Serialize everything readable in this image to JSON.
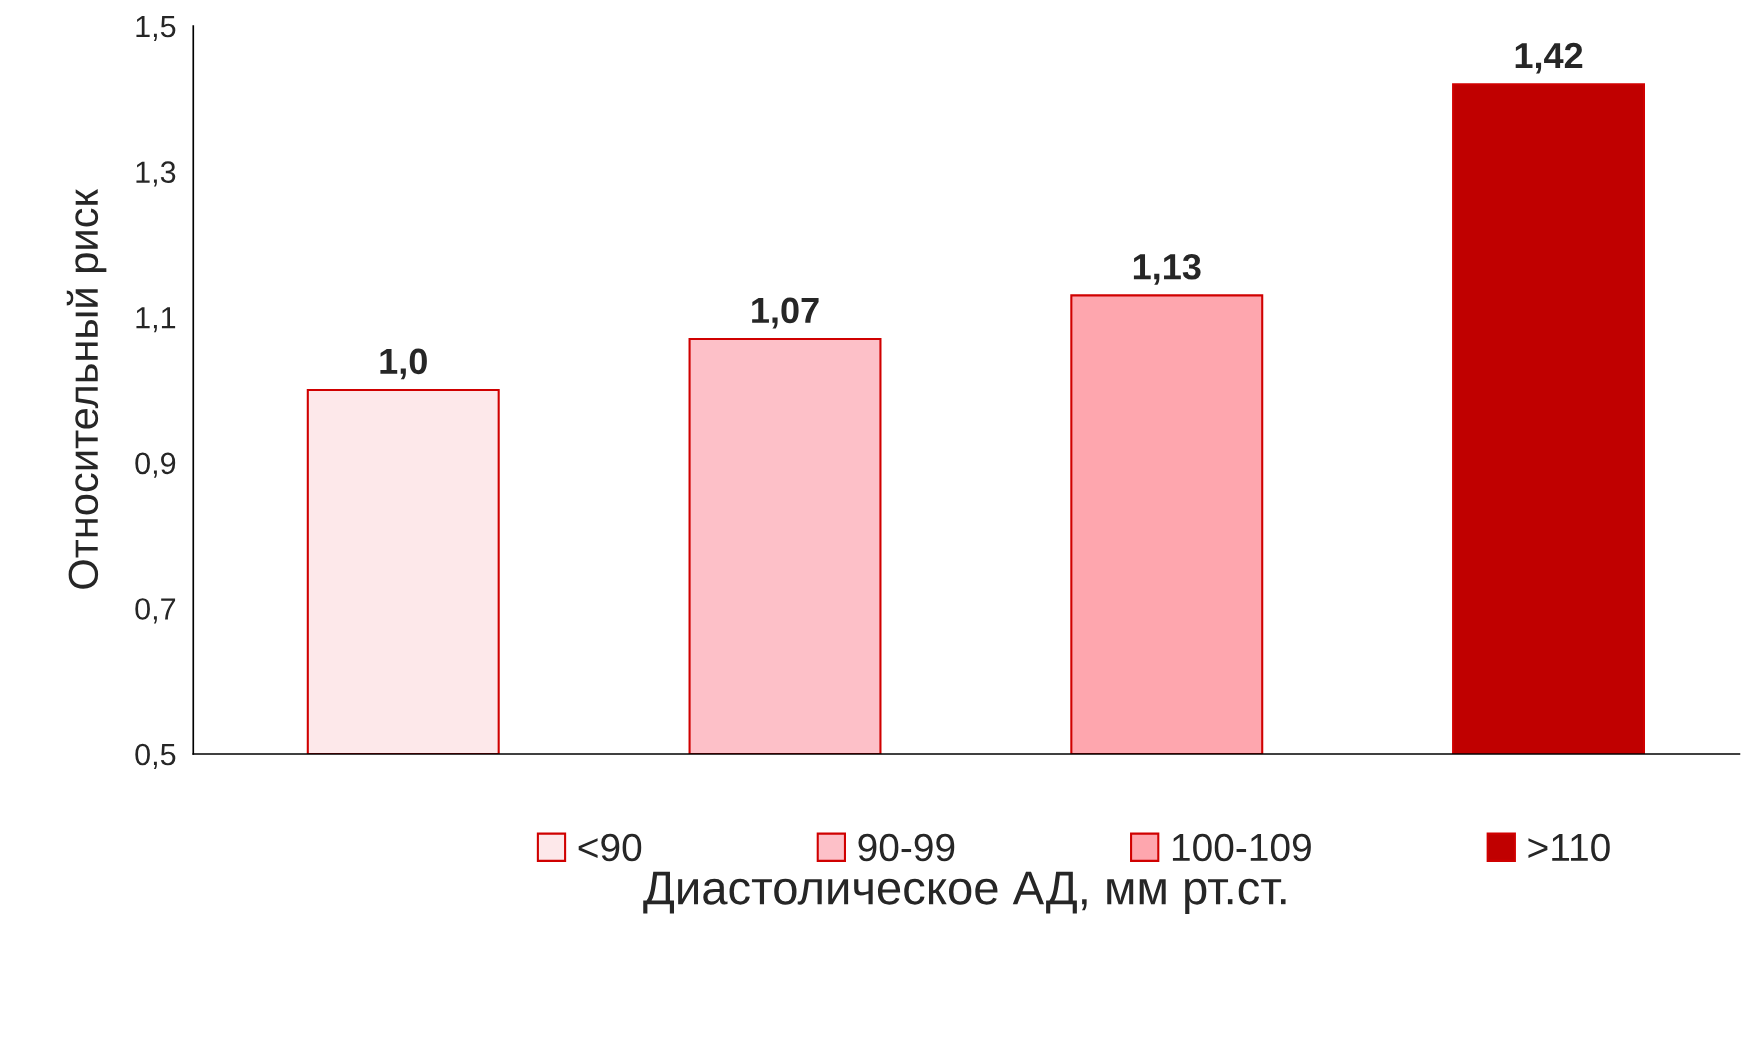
{
  "chart_data": {
    "type": "bar",
    "xlabel": "Диастолическое АД, мм рт.ст.",
    "ylabel": "Относительный риск",
    "categories": [
      null,
      null,
      null,
      null
    ],
    "series": [
      {
        "name": "<90",
        "color": "#fde8ea",
        "values": [
          1.0,
          null,
          null,
          null
        ],
        "value_labels": [
          "1,0",
          null,
          null,
          null
        ]
      },
      {
        "name": "90-99",
        "color": "#fdc0c8",
        "values": [
          null,
          1.07,
          null,
          null
        ],
        "value_labels": [
          null,
          "1,07",
          null,
          null
        ]
      },
      {
        "name": "100-109",
        "color": "#fea6ae",
        "values": [
          null,
          null,
          1.13,
          null
        ],
        "value_labels": [
          null,
          null,
          "1,13",
          null
        ]
      },
      {
        "name": ">110",
        "color": "#c00000",
        "values": [
          null,
          null,
          null,
          1.42
        ],
        "value_labels": [
          null,
          null,
          null,
          "1,42"
        ]
      }
    ],
    "ylim": [
      0.5,
      1.5
    ],
    "yticks": [
      {
        "value": 0.5,
        "label": "0,5"
      },
      {
        "value": 0.7,
        "label": "0,7"
      },
      {
        "value": 0.9,
        "label": "0,9"
      },
      {
        "value": 1.1,
        "label": "1,1"
      },
      {
        "value": 1.3,
        "label": "1,3"
      },
      {
        "value": 1.5,
        "label": "1,5"
      }
    ],
    "grid": false,
    "legend": "bottom"
  }
}
